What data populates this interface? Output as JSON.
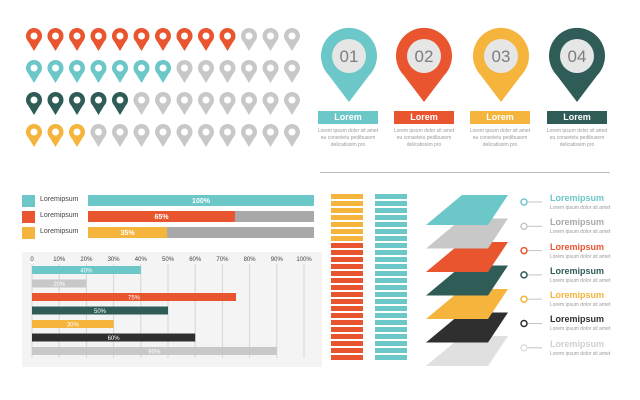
{
  "colors": {
    "teal": "#6cc7c9",
    "orange": "#e8552f",
    "dark_green": "#2f5c57",
    "yellow": "#f5b43c",
    "grey": "#c8c8c8",
    "dark_grey": "#2f2f2f",
    "light_grey": "#e0e0e0"
  },
  "pin_grid": {
    "rows": [
      {
        "color": "orange",
        "filled": 10,
        "total": 13
      },
      {
        "color": "teal",
        "filled": 7,
        "total": 13
      },
      {
        "color": "dark_green",
        "filled": 5,
        "total": 13
      },
      {
        "color": "yellow",
        "filled": 3,
        "total": 13
      }
    ]
  },
  "big_pins": [
    {
      "number": "01",
      "color": "teal",
      "label": "Lorem",
      "desc": [
        "Lorem ipsum dolor sit amet",
        "eu consetetu pedibusem",
        "delicatissim pro"
      ]
    },
    {
      "number": "02",
      "color": "orange",
      "label": "Lorem",
      "desc": [
        "Lorem ipsum dolor sit amet",
        "eu consetetu pedibusem",
        "delicatissim pro"
      ]
    },
    {
      "number": "03",
      "color": "yellow",
      "label": "Lorem",
      "desc": [
        "Lorem ipsum dolor sit amet",
        "eu consetetu pedibusem",
        "delicatissim pro"
      ]
    },
    {
      "number": "04",
      "color": "dark_green",
      "label": "Lorem",
      "desc": [
        "Lorem ipsum dolor sit amet",
        "eu consetetu pedibusem",
        "delicatissim pro"
      ]
    }
  ],
  "chart_data": [
    {
      "type": "bar",
      "orientation": "horizontal",
      "categories": [
        "Loremipsum",
        "Loremipsum",
        "Loremipsum"
      ],
      "values": [
        100,
        65,
        35
      ],
      "value_labels": [
        "100%",
        "65%",
        "35%"
      ],
      "colors": [
        "teal",
        "orange",
        "yellow"
      ],
      "max": 100
    },
    {
      "type": "bar",
      "orientation": "horizontal",
      "xticks": [
        "0",
        "10%",
        "20%",
        "30%",
        "40%",
        "50%",
        "60%",
        "70%",
        "80%",
        "90%",
        "100%"
      ],
      "values": [
        40,
        20,
        75,
        50,
        30,
        60,
        90
      ],
      "value_labels": [
        "40%",
        "20%",
        "75%",
        "50%",
        "30%",
        "60%",
        "90%"
      ],
      "colors": [
        "teal",
        "grey",
        "orange",
        "dark_green",
        "yellow",
        "dark_grey",
        "grey"
      ],
      "xlim": [
        0,
        100
      ],
      "grid": true
    }
  ],
  "stacked_columns": [
    {
      "segments": [
        {
          "color": "yellow",
          "count": 7
        },
        {
          "color": "orange",
          "count": 17
        }
      ]
    },
    {
      "segments": [
        {
          "color": "teal",
          "count": 24
        }
      ]
    }
  ],
  "layers": [
    {
      "color": "teal",
      "title": "Loremipsum",
      "desc": "Lorem ipsum dolor sit amet"
    },
    {
      "color": "grey",
      "title": "Loremipsum",
      "desc": "Lorem ipsum dolor sit amet"
    },
    {
      "color": "orange",
      "title": "Loremipsum",
      "desc": "Lorem ipsum dolor sit amet"
    },
    {
      "color": "dark_green",
      "title": "Loremipsum",
      "desc": "Lorem ipsum dolor sit amet"
    },
    {
      "color": "yellow",
      "title": "Loremipsum",
      "desc": "Lorem ipsum dolor sit amet"
    },
    {
      "color": "dark_grey",
      "title": "Loremipsum",
      "desc": "Lorem ipsum dolor sit amet"
    },
    {
      "color": "light_grey",
      "title": "Loremipsum",
      "desc": "Lorem ipsum dolor sit amet"
    }
  ]
}
